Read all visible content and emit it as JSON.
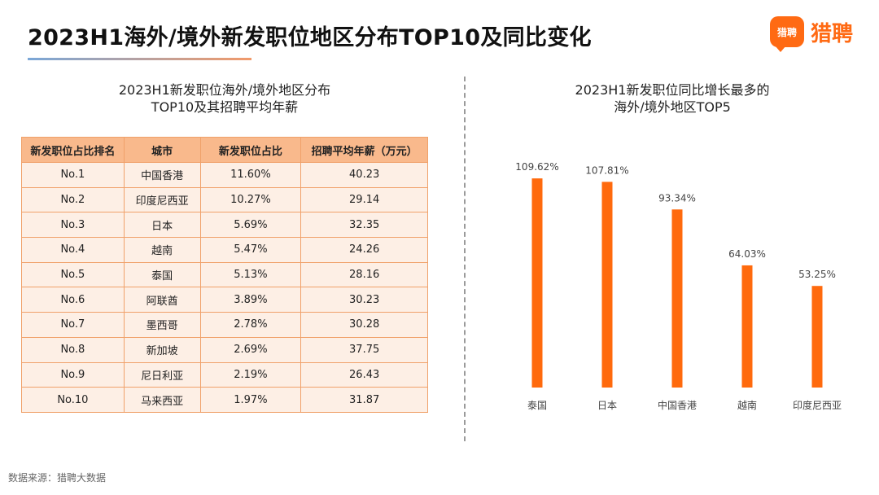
{
  "page": {
    "title": "2023H1海外/境外新发职位地区分布TOP10及同比变化",
    "brand_name": "猎聘",
    "brand_mark": "猎聘",
    "accent": "#ff6a13"
  },
  "table": {
    "title_line1": "2023H1新发职位海外/境外地区分布",
    "title_line2": "TOP10及其招聘平均年薪",
    "headers": [
      "新发职位占比排名",
      "城市",
      "新发职位占比",
      "招聘平均年薪（万元）"
    ],
    "rows": [
      [
        "No.1",
        "中国香港",
        "11.60%",
        "40.23"
      ],
      [
        "No.2",
        "印度尼西亚",
        "10.27%",
        "29.14"
      ],
      [
        "No.3",
        "日本",
        "5.69%",
        "32.35"
      ],
      [
        "No.4",
        "越南",
        "5.47%",
        "24.26"
      ],
      [
        "No.5",
        "泰国",
        "5.13%",
        "28.16"
      ],
      [
        "No.6",
        "阿联酋",
        "3.89%",
        "30.23"
      ],
      [
        "No.7",
        "墨西哥",
        "2.78%",
        "30.28"
      ],
      [
        "No.8",
        "新加坡",
        "2.69%",
        "37.75"
      ],
      [
        "No.9",
        "尼日利亚",
        "2.19%",
        "26.43"
      ],
      [
        "No.10",
        "马来西亚",
        "1.97%",
        "31.87"
      ]
    ]
  },
  "chart_data": {
    "type": "bar",
    "title": "2023H1新发职位同比增长最多的海外/境外地区TOP5",
    "title_line1": "2023H1新发职位同比增长最多的",
    "title_line2": "海外/境外地区TOP5",
    "categories": [
      "泰国",
      "日本",
      "中国香港",
      "越南",
      "印度尼西亚"
    ],
    "values": [
      109.62,
      107.81,
      93.34,
      64.03,
      53.25
    ],
    "labels": [
      "109.62%",
      "107.81%",
      "93.34%",
      "64.03%",
      "53.25%"
    ],
    "ylim": [
      0,
      120
    ],
    "grid": false,
    "color": "#ff6a0d"
  },
  "footnote": "数据来源：猎聘大数据"
}
